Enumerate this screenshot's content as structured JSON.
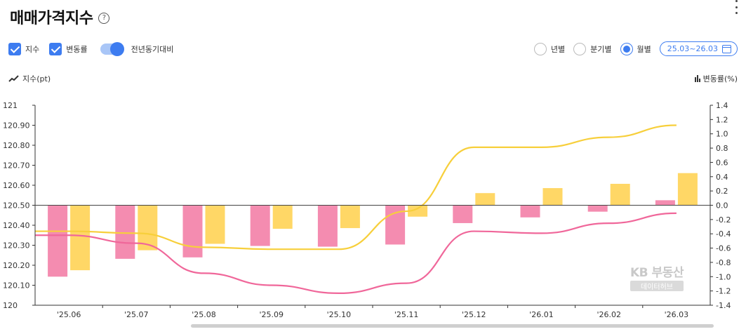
{
  "header": {
    "title": "매매가격지수",
    "help_icon": "help-circle-icon",
    "menu_icon": "more-vertical-icon"
  },
  "options": {
    "index_label": "지수",
    "change_label": "변동률",
    "yoy_label": "전년동기대비",
    "index_checked": true,
    "change_checked": true,
    "yoy_on": true
  },
  "period": {
    "yearly_label": "년별",
    "quarterly_label": "분기별",
    "monthly_label": "월별",
    "selected": "월별",
    "range_label": "25.03~26.03",
    "calendar_icon": "calendar-icon"
  },
  "axes": {
    "left_title": "지수(pt)",
    "right_title": "변동률(%)",
    "left_icon": "trend-line-icon",
    "right_icon": "bar-chart-icon"
  },
  "chart_data": {
    "type": "bar+line",
    "categories": [
      "'25.06",
      "'25.07",
      "'25.08",
      "'25.09",
      "'25.10",
      "'25.11",
      "'25.12",
      "'26.01",
      "'26.02",
      "'26.03"
    ],
    "y_left": {
      "range": [
        120,
        121
      ],
      "ticks": [
        "120",
        "120.10",
        "120.20",
        "120.30",
        "120.40",
        "120.50",
        "120.60",
        "120.70",
        "120.80",
        "120.90",
        "121"
      ]
    },
    "y_right": {
      "range": [
        -1.4,
        1.4
      ],
      "ticks": [
        "-1.4",
        "-1.2",
        "-1.0",
        "-0.8",
        "-0.6",
        "-0.4",
        "-0.2",
        "0.0",
        "0.2",
        "0.4",
        "0.6",
        "0.8",
        "1.0",
        "1.2",
        "1.4"
      ]
    },
    "bars": [
      {
        "color": "#f48cb0",
        "axis": "right",
        "values": [
          -1.0,
          -0.75,
          -0.73,
          -0.57,
          -0.58,
          -0.55,
          -0.25,
          -0.17,
          -0.09,
          0.07
        ]
      },
      {
        "color": "#ffd766",
        "axis": "right",
        "values": [
          -0.91,
          -0.63,
          -0.54,
          -0.33,
          -0.32,
          -0.16,
          0.17,
          0.24,
          0.3,
          0.45
        ]
      }
    ],
    "lines": [
      {
        "color": "#f0679a",
        "axis": "left",
        "values": [
          120.35,
          120.31,
          120.16,
          120.1,
          120.06,
          120.11,
          120.37,
          120.36,
          120.41,
          120.46
        ]
      },
      {
        "color": "#f7cf3b",
        "axis": "left",
        "values": [
          120.37,
          120.36,
          120.29,
          120.28,
          120.28,
          120.47,
          120.79,
          120.79,
          120.84,
          120.9
        ]
      }
    ],
    "grid": false,
    "zero_line": true
  },
  "watermark": {
    "main": "KB 부동산",
    "sub": "데이터허브"
  }
}
